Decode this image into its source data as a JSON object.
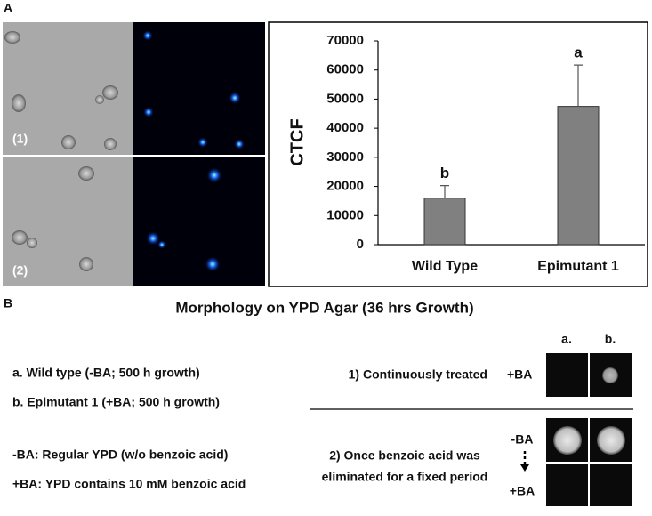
{
  "figure": {
    "panel_a_label": "A",
    "image_labels": [
      "(1)",
      "(2)"
    ],
    "panel_b_label": "B",
    "panel_b": {
      "title": "Morphology on YPD Agar (36 hrs Growth)",
      "key_lines": [
        "a. Wild type (-BA; 500 h growth)",
        "b. Epimutant 1 (+BA; 500 h growth)",
        "-BA: Regular YPD (w/o benzoic acid)",
        "+BA: YPD contains 10 mM benzoic acid"
      ],
      "column_labels": [
        "a.",
        "b."
      ],
      "rows": [
        {
          "label_lines": [
            "1) Continuously treated"
          ],
          "conditions": [
            "+BA"
          ]
        },
        {
          "label_lines": [
            "2) Once benzoic acid was",
            "eliminated for a fixed period"
          ],
          "conditions": [
            "-BA",
            "+BA"
          ]
        }
      ]
    }
  },
  "chart_data": {
    "type": "bar",
    "ylabel": "CTCF",
    "categories": [
      "Wild Type",
      "Epimutant 1"
    ],
    "values": [
      16000,
      47500
    ],
    "errors": [
      4300,
      14200
    ],
    "annotations": [
      "b",
      "a"
    ],
    "color": "#808080",
    "ylim": [
      0,
      70000
    ],
    "yticks": [
      0,
      10000,
      20000,
      30000,
      40000,
      50000,
      60000,
      70000
    ]
  }
}
